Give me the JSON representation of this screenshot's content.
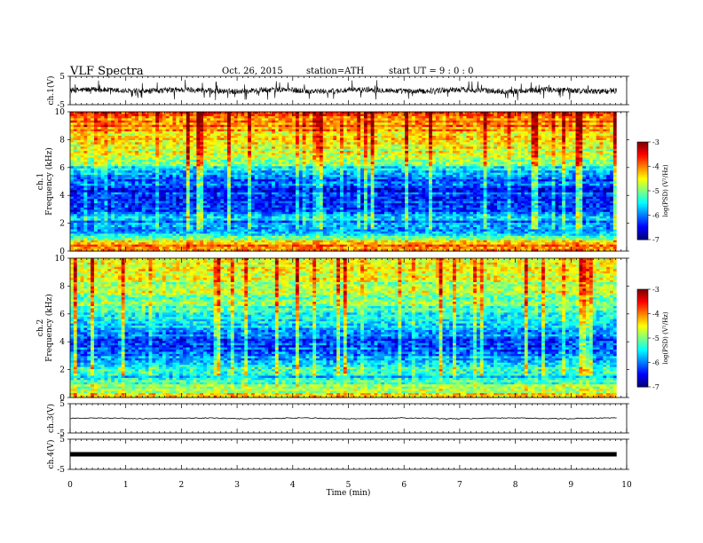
{
  "header": {
    "title": "VLF  Spectra",
    "date": "Oct. 26, 2015",
    "station": "station=ATH",
    "start": "start  UT  =   9  : 0  : 0"
  },
  "chart_data": [
    {
      "type": "line",
      "panel": "ch1-waveform",
      "ylabel": "ch.1(V)",
      "ylim": [
        -5,
        5
      ],
      "yticks": [
        "5",
        "-5"
      ],
      "x_unit": "min",
      "xlim": [
        0,
        10
      ],
      "data_extent_x": [
        0,
        9.82
      ],
      "series": [
        {
          "baseline": 0,
          "noise_amplitude": 1.0,
          "spike_amplitude": 3.5
        }
      ]
    },
    {
      "type": "heatmap",
      "panel": "ch1-spectrogram",
      "ylabel": "ch.1\nFrequency  (kHz)",
      "ylim": [
        0,
        10
      ],
      "yticks": [
        "0",
        "2",
        "4",
        "6",
        "8",
        "10"
      ],
      "xlim": [
        0,
        10
      ],
      "data_extent_x": [
        0,
        9.82
      ],
      "colorbar": {
        "label": "log(PSD) (V²/Hz)",
        "range": [
          -7,
          -3
        ],
        "ticks": [
          "-3",
          "-4",
          "-5",
          "-6",
          "-7"
        ]
      },
      "profile_khz_logpsd": [
        [
          0,
          -3.8
        ],
        [
          0.5,
          -4.0
        ],
        [
          1.0,
          -5.3
        ],
        [
          1.5,
          -5.9
        ],
        [
          2.0,
          -6.0
        ],
        [
          2.5,
          -5.7
        ],
        [
          3.0,
          -6.3
        ],
        [
          3.5,
          -6.5
        ],
        [
          4.0,
          -6.4
        ],
        [
          4.5,
          -6.3
        ],
        [
          5.0,
          -6.2
        ],
        [
          5.5,
          -6.0
        ],
        [
          6.0,
          -5.4
        ],
        [
          6.5,
          -5.0
        ],
        [
          7.0,
          -4.7
        ],
        [
          8.0,
          -4.4
        ],
        [
          9.0,
          -4.1
        ],
        [
          10.0,
          -3.9
        ]
      ]
    },
    {
      "type": "heatmap",
      "panel": "ch2-spectrogram",
      "ylabel": "ch.2\nFrequency  (kHz)",
      "ylim": [
        0,
        10
      ],
      "yticks": [
        "0",
        "2",
        "4",
        "6",
        "8",
        "10"
      ],
      "xlim": [
        0,
        10
      ],
      "data_extent_x": [
        0,
        9.82
      ],
      "colorbar": {
        "label": "log(PSD) (V²/Hz)",
        "range": [
          -7,
          -3
        ],
        "ticks": [
          "-3",
          "-4",
          "-5",
          "-6",
          "-7"
        ]
      },
      "profile_khz_logpsd": [
        [
          0,
          -4.2
        ],
        [
          0.5,
          -4.8
        ],
        [
          1.0,
          -5.1
        ],
        [
          1.5,
          -5.6
        ],
        [
          2.0,
          -5.4
        ],
        [
          2.5,
          -5.6
        ],
        [
          3.0,
          -5.9
        ],
        [
          3.5,
          -6.2
        ],
        [
          4.0,
          -6.3
        ],
        [
          4.5,
          -6.1
        ],
        [
          5.0,
          -5.7
        ],
        [
          5.5,
          -5.5
        ],
        [
          6.0,
          -5.3
        ],
        [
          7.0,
          -5.0
        ],
        [
          8.0,
          -4.8
        ],
        [
          9.0,
          -4.6
        ],
        [
          10.0,
          -4.5
        ]
      ]
    },
    {
      "type": "line",
      "panel": "ch3-waveform",
      "ylabel": "ch.3(V)",
      "ylim": [
        -5,
        5
      ],
      "yticks": [
        "5",
        "-5"
      ],
      "xlim": [
        0,
        10
      ],
      "data_extent_x": [
        0,
        9.82
      ],
      "series": [
        {
          "baseline": 0,
          "noise_amplitude": 0.15
        }
      ]
    },
    {
      "type": "line",
      "panel": "ch4-waveform",
      "ylabel": "ch.4(V)",
      "ylim": [
        -5,
        5
      ],
      "yticks": [
        "5",
        "-5"
      ],
      "xlim": [
        0,
        10
      ],
      "xlabel": "Time  (min)",
      "xticks": [
        "0",
        "1",
        "2",
        "3",
        "4",
        "5",
        "6",
        "7",
        "8",
        "9",
        "10"
      ],
      "data_extent_x": [
        0,
        9.82
      ],
      "series": [
        {
          "baseline": 0,
          "noise_amplitude": 0.0
        }
      ]
    }
  ]
}
